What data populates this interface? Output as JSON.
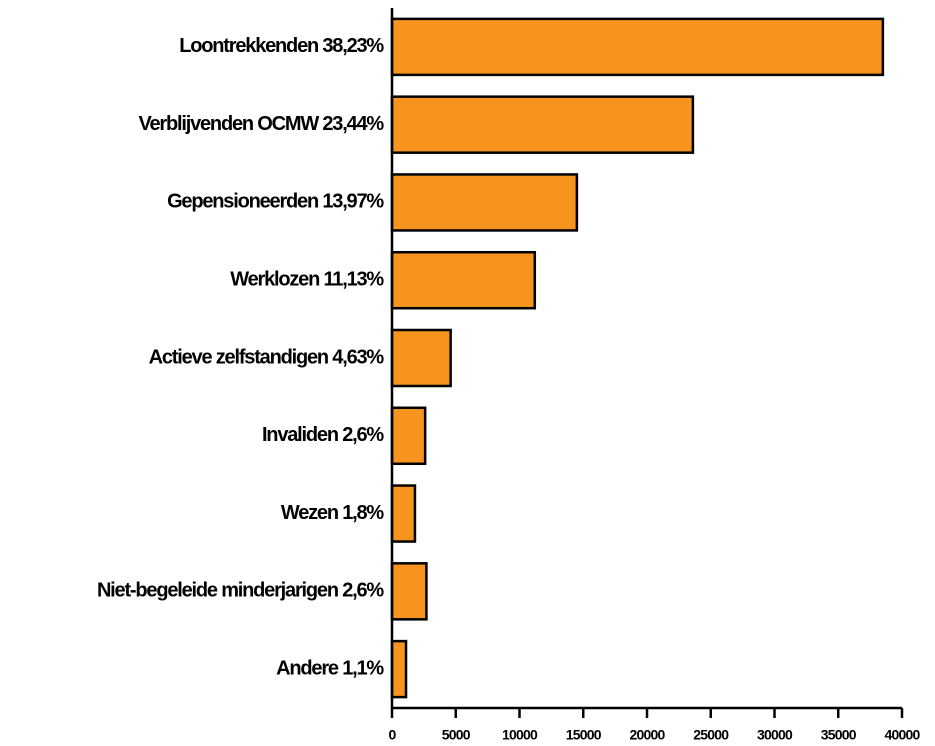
{
  "chart_data": {
    "type": "bar",
    "orientation": "horizontal",
    "categories": [
      "Loontrekkenden 38,23%",
      "Verblijvenden OCMW 23,44%",
      "Gepensioneerden 13,97%",
      "Werklozen 11,13%",
      "Actieve zelfstandigen 4,63%",
      "Invaliden 2,6%",
      "Wezen 1,8%",
      "Niet-begeleide minderjarigen 2,6%",
      "Andere 1,1%"
    ],
    "values": [
      38500,
      23600,
      14500,
      11200,
      4600,
      2600,
      1800,
      2700,
      1100
    ],
    "color": "#f7941d",
    "xlim": [
      0,
      40000
    ],
    "xticks": [
      0,
      5000,
      10000,
      15000,
      20000,
      25000,
      30000,
      35000,
      40000
    ],
    "grid": false
  }
}
